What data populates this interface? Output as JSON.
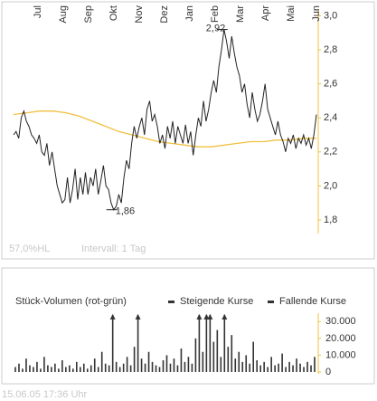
{
  "chart_data": [
    {
      "type": "line",
      "month_labels": [
        "Jul",
        "Aug",
        "Sep",
        "Okt",
        "Nov",
        "Dez",
        "Jan",
        "Feb",
        "Mar",
        "Apr",
        "Mai",
        "Jun"
      ],
      "series": [
        {
          "color": "#222222",
          "values": [
            2.3,
            2.32,
            2.28,
            2.4,
            2.44,
            2.38,
            2.35,
            2.3,
            2.28,
            2.25,
            2.3,
            2.2,
            2.18,
            2.25,
            2.12,
            2.2,
            2.1,
            2.0,
            1.95,
            1.9,
            1.92,
            2.05,
            1.9,
            1.98,
            2.1,
            1.92,
            2.05,
            1.95,
            2.08,
            1.95,
            2.05,
            2.0,
            2.1,
            1.95,
            2.03,
            2.12,
            2.0,
            1.98,
            1.9,
            1.86,
            1.88,
            1.95,
            1.9,
            2.05,
            2.15,
            2.1,
            2.25,
            2.35,
            2.28,
            2.35,
            2.4,
            2.3,
            2.45,
            2.5,
            2.38,
            2.42,
            2.35,
            2.25,
            2.3,
            2.22,
            2.35,
            2.28,
            2.38,
            2.25,
            2.35,
            2.3,
            2.25,
            2.36,
            2.25,
            2.32,
            2.18,
            2.3,
            2.4,
            2.35,
            2.5,
            2.38,
            2.45,
            2.55,
            2.62,
            2.55,
            2.7,
            2.8,
            2.92,
            2.85,
            2.75,
            2.88,
            2.78,
            2.7,
            2.65,
            2.55,
            2.6,
            2.48,
            2.4,
            2.55,
            2.45,
            2.38,
            2.42,
            2.5,
            2.6,
            2.45,
            2.4,
            2.35,
            2.3,
            2.38,
            2.3,
            2.26,
            2.2,
            2.28,
            2.25,
            2.3,
            2.22,
            2.28,
            2.25,
            2.3,
            2.24,
            2.28,
            2.22,
            2.3,
            2.42
          ]
        },
        {
          "color": "#f0c040",
          "values": [
            2.42,
            2.43,
            2.44,
            2.44,
            2.43,
            2.41,
            2.38,
            2.35,
            2.32,
            2.3,
            2.28,
            2.26,
            2.25,
            2.24,
            2.23,
            2.23,
            2.24,
            2.25,
            2.26,
            2.26,
            2.27,
            2.27,
            2.28,
            2.28
          ]
        }
      ],
      "ylim": [
        1.72,
        3.04
      ],
      "yticks": [
        {
          "value": 1.8,
          "label": "1,8"
        },
        {
          "value": 2.0,
          "label": "2,0"
        },
        {
          "value": 2.2,
          "label": "2,2"
        },
        {
          "value": 2.4,
          "label": "2,4"
        },
        {
          "value": 2.6,
          "label": "2,6"
        },
        {
          "value": 2.8,
          "label": "2,8"
        },
        {
          "value": 3.0,
          "label": "3,0"
        }
      ],
      "annotations": [
        {
          "value": 2.92,
          "label": "2,92"
        },
        {
          "value": 1.86,
          "label": "1,86"
        }
      ],
      "notes": [
        "57,0%HL",
        "Intervall: 1 Tag"
      ]
    },
    {
      "type": "bar",
      "title": "Stück-Volumen (rot-grün)",
      "legend": [
        "Steigende Kurse",
        "Fallende Kurse"
      ],
      "color": "#333333",
      "values": [
        3000,
        5000,
        2000,
        8000,
        4000,
        3000,
        6000,
        2000,
        9000,
        4000,
        3000,
        5000,
        2000,
        7000,
        3000,
        4000,
        2000,
        6000,
        3000,
        5000,
        2000,
        4000,
        8000,
        3000,
        12000,
        5000,
        4000,
        34000,
        6000,
        3000,
        5000,
        9000,
        4000,
        15000,
        34000,
        8000,
        5000,
        12000,
        6000,
        4000,
        3000,
        7000,
        10000,
        5000,
        8000,
        4000,
        14000,
        6000,
        9000,
        5000,
        20000,
        34000,
        12000,
        34000,
        34000,
        18000,
        25000,
        9000,
        34000,
        15000,
        22000,
        8000,
        12000,
        6000,
        10000,
        5000,
        18000,
        7000,
        4000,
        6000,
        3000,
        9000,
        4000,
        5000,
        11000,
        3000,
        6000,
        4000,
        8000,
        5000,
        3000,
        6000,
        4000,
        9000
      ],
      "ylim": [
        0,
        35000
      ],
      "yticks": [
        0,
        {
          "value": 10000,
          "label": "10.000"
        },
        {
          "value": 20000,
          "label": "20.000"
        },
        {
          "value": 30000,
          "label": "30.000"
        }
      ]
    }
  ],
  "footer": "15.06.05   17:36 Uhr"
}
